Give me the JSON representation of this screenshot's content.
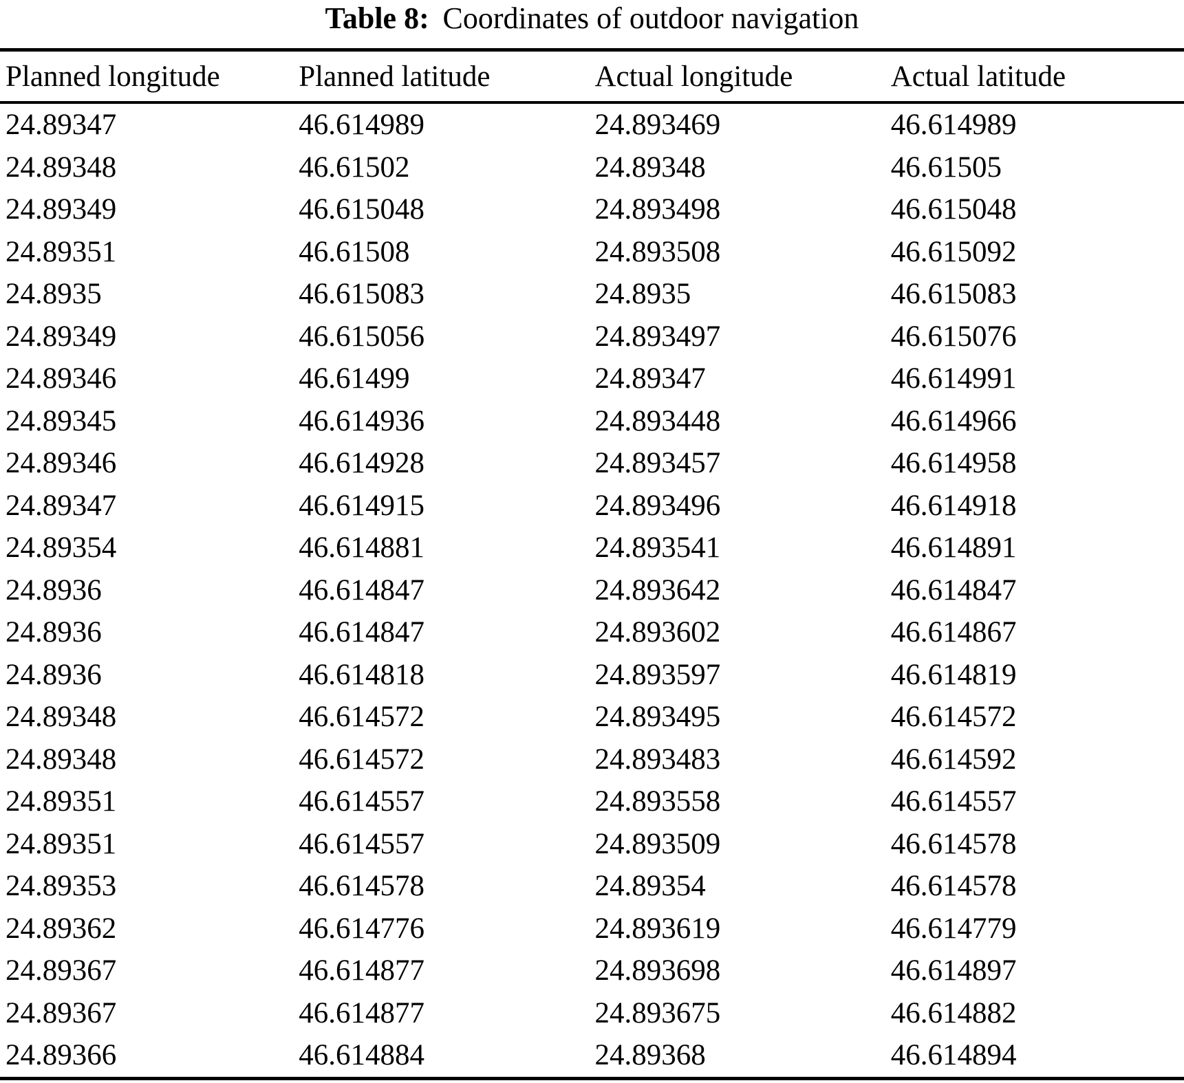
{
  "caption": {
    "label": "Table 8:",
    "text": "Coordinates of outdoor navigation"
  },
  "table": {
    "headers": [
      "Planned longitude",
      "Planned latitude",
      "Actual longitude",
      "Actual latitude"
    ],
    "rows": [
      [
        "24.89347",
        "46.614989",
        "24.893469",
        "46.614989"
      ],
      [
        "24.89348",
        "46.61502",
        "24.89348",
        "46.61505"
      ],
      [
        "24.89349",
        "46.615048",
        "24.893498",
        "46.615048"
      ],
      [
        "24.89351",
        "46.61508",
        "24.893508",
        "46.615092"
      ],
      [
        "24.8935",
        "46.615083",
        "24.8935",
        "46.615083"
      ],
      [
        "24.89349",
        "46.615056",
        "24.893497",
        "46.615076"
      ],
      [
        "24.89346",
        "46.61499",
        "24.89347",
        "46.614991"
      ],
      [
        "24.89345",
        "46.614936",
        "24.893448",
        "46.614966"
      ],
      [
        "24.89346",
        "46.614928",
        "24.893457",
        "46.614958"
      ],
      [
        "24.89347",
        "46.614915",
        "24.893496",
        "46.614918"
      ],
      [
        "24.89354",
        "46.614881",
        "24.893541",
        "46.614891"
      ],
      [
        "24.8936",
        "46.614847",
        "24.893642",
        "46.614847"
      ],
      [
        "24.8936",
        "46.614847",
        "24.893602",
        "46.614867"
      ],
      [
        "24.8936",
        "46.614818",
        "24.893597",
        "46.614819"
      ],
      [
        "24.89348",
        "46.614572",
        "24.893495",
        "46.614572"
      ],
      [
        "24.89348",
        "46.614572",
        "24.893483",
        "46.614592"
      ],
      [
        "24.89351",
        "46.614557",
        "24.893558",
        "46.614557"
      ],
      [
        "24.89351",
        "46.614557",
        "24.893509",
        "46.614578"
      ],
      [
        "24.89353",
        "46.614578",
        "24.89354",
        "46.614578"
      ],
      [
        "24.89362",
        "46.614776",
        "24.893619",
        "46.614779"
      ],
      [
        "24.89367",
        "46.614877",
        "24.893698",
        "46.614897"
      ],
      [
        "24.89367",
        "46.614877",
        "24.893675",
        "46.614882"
      ],
      [
        "24.89366",
        "46.614884",
        "24.89368",
        "46.614894"
      ]
    ]
  }
}
